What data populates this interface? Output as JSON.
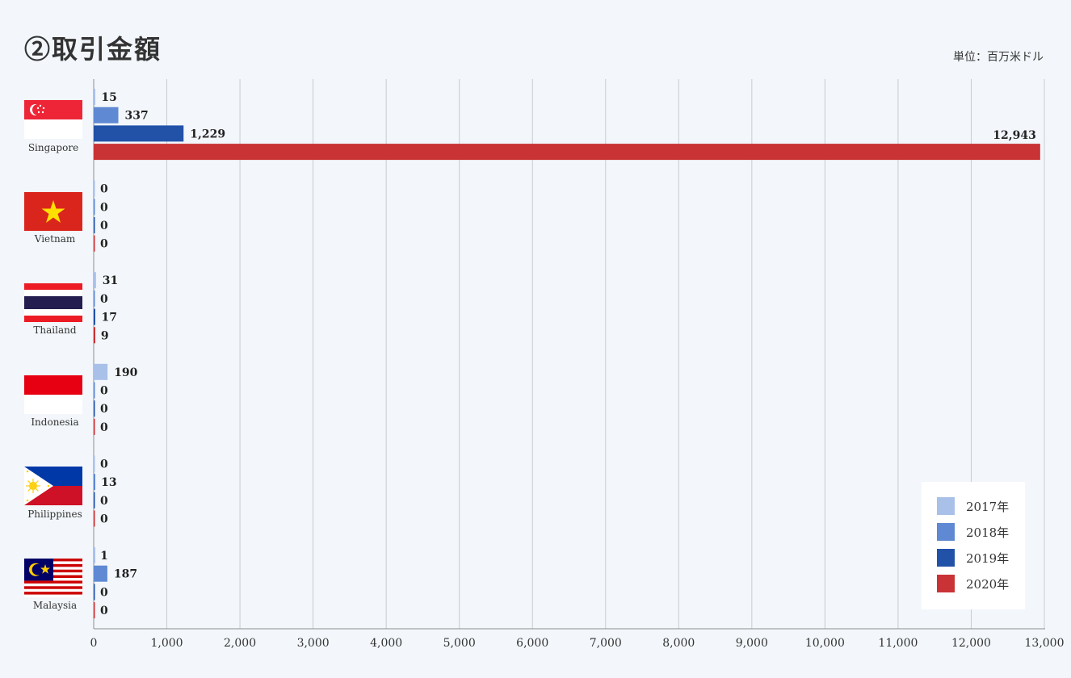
{
  "header": {
    "title": "②取引金額",
    "unit": "単位：百万米ドル"
  },
  "colors": {
    "2017": "#a9c0e8",
    "2018": "#5f89d2",
    "2019": "#2252a8",
    "2020": "#c93335",
    "grid": "#c8ccd2",
    "axis": "#8c8c8c"
  },
  "chart_data": {
    "type": "bar",
    "orientation": "horizontal",
    "title": "②取引金額",
    "unit": "単位：百万米ドル",
    "categories": [
      "Singapore",
      "Vietnam",
      "Thailand",
      "Indonesia",
      "Philippines",
      "Malaysia"
    ],
    "series": [
      {
        "name": "2017年",
        "values": [
          15,
          0,
          31,
          190,
          0,
          1
        ]
      },
      {
        "name": "2018年",
        "values": [
          337,
          0,
          0,
          0,
          13,
          187
        ]
      },
      {
        "name": "2019年",
        "values": [
          1229,
          0,
          17,
          0,
          0,
          0
        ]
      },
      {
        "name": "2020年",
        "values": [
          12943,
          0,
          9,
          0,
          0,
          0
        ]
      }
    ],
    "value_labels": [
      [
        "15",
        "337",
        "1,229",
        "12,943"
      ],
      [
        "0",
        "0",
        "0",
        "0"
      ],
      [
        "31",
        "0",
        "17",
        "9"
      ],
      [
        "190",
        "0",
        "0",
        "0"
      ],
      [
        "0",
        "13",
        "0",
        "0"
      ],
      [
        "1",
        "187",
        "0",
        "0"
      ]
    ],
    "xlim": [
      0,
      13000
    ],
    "xticks": [
      "0",
      "1,000",
      "2,000",
      "3,000",
      "4,000",
      "5,000",
      "6,000",
      "7,000",
      "8,000",
      "9,000",
      "10,000",
      "11,000",
      "12,000",
      "13,000"
    ],
    "grid": true,
    "legend_position": "bottom-right"
  }
}
